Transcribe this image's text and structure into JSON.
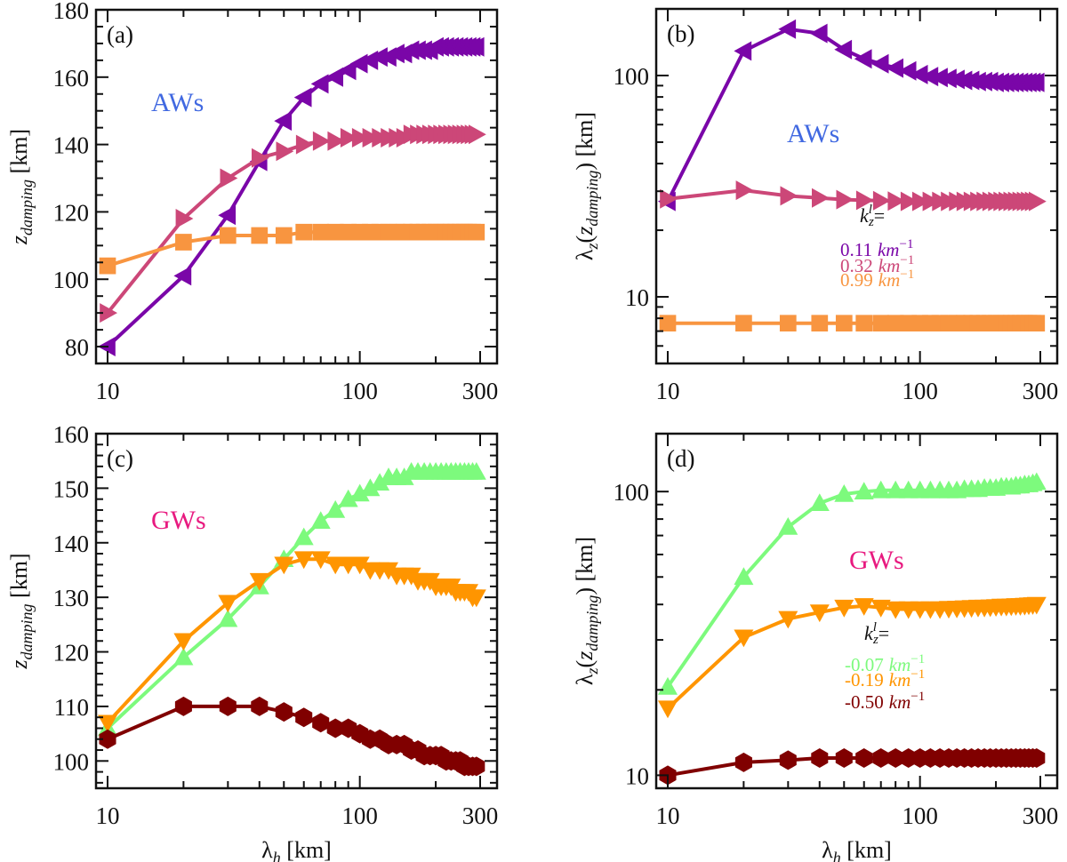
{
  "chart_data": [
    {
      "panel": "(a)",
      "type": "line",
      "title": "",
      "annotation": {
        "text": "AWs",
        "color": "#4169e1"
      },
      "xlabel": "",
      "ylabel": "z_damping [km]",
      "xscale": "log",
      "yscale": "linear",
      "xlim": [
        9,
        350
      ],
      "ylim": [
        75,
        180
      ],
      "xticks": [
        10,
        100,
        300
      ],
      "xtick_labels": [
        "10",
        "100",
        "300"
      ],
      "yticks": [
        80,
        100,
        120,
        140,
        160,
        180
      ],
      "ytick_labels": [
        "80",
        "100",
        "120",
        "140",
        "160",
        "180"
      ],
      "yminor_step": 5,
      "x": [
        10,
        20,
        30,
        40,
        50,
        60,
        70,
        80,
        90,
        100,
        110,
        120,
        130,
        140,
        150,
        160,
        170,
        180,
        190,
        200,
        210,
        220,
        230,
        240,
        250,
        260,
        270,
        280,
        290
      ],
      "series": [
        {
          "name": "0.11 km^-1",
          "color": "#7a06a8",
          "marker": "triangle-left",
          "values": [
            80,
            101,
            119,
            135,
            147,
            154,
            158,
            160,
            162,
            164,
            165,
            166,
            166,
            167,
            167,
            168,
            168,
            168,
            168,
            169,
            169,
            169,
            169,
            169,
            169,
            169,
            169,
            169,
            169
          ]
        },
        {
          "name": "0.32 km^-1",
          "color": "#cc4778",
          "marker": "triangle-right",
          "values": [
            90,
            118,
            130,
            136,
            138,
            140,
            141,
            141,
            142,
            142,
            142,
            142,
            142,
            142,
            142,
            143,
            143,
            143,
            143,
            143,
            143,
            143,
            143,
            143,
            143,
            143,
            143,
            143,
            143
          ]
        },
        {
          "name": "0.99 km^-1",
          "color": "#f89540",
          "marker": "square",
          "values": [
            104,
            111,
            113,
            113,
            113,
            114,
            114,
            114,
            114,
            114,
            114,
            114,
            114,
            114,
            114,
            114,
            114,
            114,
            114,
            114,
            114,
            114,
            114,
            114,
            114,
            114,
            114,
            114,
            114
          ]
        }
      ]
    },
    {
      "panel": "(b)",
      "type": "line",
      "title": "",
      "annotation": {
        "text": "AWs",
        "color": "#4169e1"
      },
      "legend": {
        "title": "k_z^l =",
        "placement": "center-right",
        "entries": [
          {
            "text": "0.11",
            "unit": "km",
            "exp": "−1",
            "color": "#7a06a8"
          },
          {
            "text": "0.32",
            "unit": "km",
            "exp": "−1",
            "color": "#cc4778"
          },
          {
            "text": "0.99",
            "unit": "km",
            "exp": "−1",
            "color": "#f89540"
          }
        ]
      },
      "xlabel": "",
      "ylabel": "λz(z_damping) [km]",
      "xscale": "log",
      "yscale": "log",
      "xlim": [
        9,
        350
      ],
      "ylim": [
        5,
        200
      ],
      "xticks": [
        10,
        100,
        300
      ],
      "xtick_labels": [
        "10",
        "100",
        "300"
      ],
      "yticks": [
        10,
        100
      ],
      "ytick_labels": [
        "10",
        "100"
      ],
      "x": [
        10,
        20,
        30,
        40,
        50,
        60,
        70,
        80,
        90,
        100,
        110,
        120,
        130,
        140,
        150,
        160,
        170,
        180,
        190,
        200,
        210,
        220,
        230,
        240,
        250,
        260,
        270,
        280,
        290
      ],
      "series": [
        {
          "name": "0.11 km^-1",
          "color": "#7a06a8",
          "marker": "triangle-left",
          "values": [
            27,
            129,
            162,
            155,
            131,
            119,
            113,
            108,
            105,
            101,
            99,
            98,
            97,
            96,
            95,
            95,
            94,
            94,
            94,
            93,
            93,
            93,
            93,
            93,
            93,
            93,
            93,
            93,
            93
          ]
        },
        {
          "name": "0.32 km^-1",
          "color": "#cc4778",
          "marker": "triangle-right",
          "values": [
            27.7,
            30.3,
            28.6,
            28,
            27.5,
            27.3,
            27.2,
            27.1,
            27,
            27,
            27,
            27,
            27,
            27,
            27,
            27,
            27,
            27,
            27,
            27,
            27,
            27,
            27,
            27,
            27,
            27,
            27,
            27,
            27
          ]
        },
        {
          "name": "0.99 km^-1",
          "color": "#f89540",
          "marker": "square",
          "values": [
            7.6,
            7.6,
            7.6,
            7.6,
            7.6,
            7.6,
            7.6,
            7.6,
            7.6,
            7.6,
            7.6,
            7.6,
            7.6,
            7.6,
            7.6,
            7.6,
            7.6,
            7.6,
            7.6,
            7.6,
            7.6,
            7.6,
            7.6,
            7.6,
            7.6,
            7.6,
            7.6,
            7.6,
            7.6
          ]
        }
      ]
    },
    {
      "panel": "(c)",
      "type": "line",
      "title": "",
      "annotation": {
        "text": "GWs",
        "color": "#e8197f"
      },
      "xlabel": "λh [km]",
      "ylabel": "z_damping [km]",
      "xscale": "log",
      "yscale": "linear",
      "xlim": [
        9,
        350
      ],
      "ylim": [
        95,
        160
      ],
      "xticks": [
        10,
        100,
        300
      ],
      "xtick_labels": [
        "10",
        "100",
        "300"
      ],
      "yticks": [
        100,
        110,
        120,
        130,
        140,
        150,
        160
      ],
      "ytick_labels": [
        "100",
        "110",
        "120",
        "130",
        "140",
        "150",
        "160"
      ],
      "yminor_step": 2,
      "x": [
        10,
        20,
        30,
        40,
        50,
        60,
        70,
        80,
        90,
        100,
        110,
        120,
        130,
        140,
        150,
        160,
        170,
        180,
        190,
        200,
        210,
        220,
        230,
        240,
        250,
        260,
        270,
        280,
        290
      ],
      "series": [
        {
          "name": "-0.07 km^-1",
          "color": "#7dfa7d",
          "marker": "triangle-up",
          "values": [
            106,
            119,
            126,
            132,
            137,
            141,
            144,
            146,
            148,
            149,
            150,
            151,
            152,
            152,
            152,
            153,
            153,
            153,
            153,
            153,
            153,
            153,
            153,
            153,
            153,
            153,
            153,
            153,
            153
          ]
        },
        {
          "name": "-0.19 km^-1",
          "color": "#ff9500",
          "marker": "triangle-down",
          "values": [
            107,
            122,
            129,
            133,
            136,
            137,
            137,
            136,
            136,
            136,
            135,
            135,
            135,
            134,
            134,
            134,
            133,
            133,
            133,
            132,
            132,
            132,
            132,
            131,
            131,
            131,
            131,
            130,
            130
          ]
        },
        {
          "name": "-0.50 km^-1",
          "color": "#800000",
          "marker": "hexagon",
          "values": [
            104,
            110,
            110,
            110,
            109,
            108,
            107,
            106,
            106,
            105,
            104,
            104,
            103,
            103,
            103,
            102,
            102,
            101,
            101,
            101,
            101,
            100,
            100,
            100,
            100,
            99,
            99,
            99,
            99
          ]
        }
      ]
    },
    {
      "panel": "(d)",
      "type": "line",
      "title": "",
      "annotation": {
        "text": "GWs",
        "color": "#e8197f"
      },
      "legend": {
        "title": "k_z^l =",
        "placement": "center-right",
        "entries": [
          {
            "text": "-0.07",
            "unit": "km",
            "exp": "−1",
            "color": "#7dfa7d"
          },
          {
            "text": "-0.19",
            "unit": "km",
            "exp": "−1",
            "color": "#ff9500"
          },
          {
            "text": "-0.50",
            "unit": "km",
            "exp": "−1",
            "color": "#800000"
          }
        ]
      },
      "xlabel": "λh [km]",
      "ylabel": "λz(z_damping) [km]",
      "xscale": "log",
      "yscale": "log",
      "xlim": [
        9,
        350
      ],
      "ylim": [
        9,
        160
      ],
      "xticks": [
        10,
        100,
        300
      ],
      "xtick_labels": [
        "10",
        "100",
        "300"
      ],
      "yticks": [
        10,
        100
      ],
      "ytick_labels": [
        "10",
        "100"
      ],
      "x": [
        10,
        20,
        30,
        40,
        50,
        60,
        70,
        80,
        90,
        100,
        110,
        120,
        130,
        140,
        150,
        160,
        170,
        180,
        190,
        200,
        210,
        220,
        230,
        240,
        250,
        260,
        270,
        280,
        290
      ],
      "series": [
        {
          "name": "-0.07 km^-1",
          "color": "#7dfa7d",
          "marker": "triangle-up",
          "values": [
            20.5,
            50,
            75,
            91,
            98,
            100,
            101,
            101,
            101,
            101,
            101,
            101,
            101,
            101,
            102,
            102,
            102,
            103,
            103,
            103,
            104,
            104,
            104,
            105,
            105,
            106,
            106,
            107,
            108
          ]
        },
        {
          "name": "-0.19 km^-1",
          "color": "#ff9500",
          "marker": "triangle-down",
          "values": [
            17.2,
            30.6,
            35.6,
            37.5,
            39,
            39.5,
            39,
            38.5,
            38.5,
            38.5,
            38.5,
            38.5,
            38.6,
            38.7,
            38.8,
            38.9,
            39,
            39,
            39.1,
            39.2,
            39.3,
            39.3,
            39.4,
            39.5,
            39.5,
            39.6,
            39.7,
            39.8,
            39.9
          ]
        },
        {
          "name": "-0.50 km^-1",
          "color": "#800000",
          "marker": "hexagon",
          "values": [
            10,
            11.1,
            11.3,
            11.5,
            11.5,
            11.5,
            11.5,
            11.5,
            11.5,
            11.5,
            11.5,
            11.5,
            11.5,
            11.5,
            11.5,
            11.5,
            11.5,
            11.5,
            11.5,
            11.5,
            11.5,
            11.5,
            11.5,
            11.5,
            11.5,
            11.5,
            11.5,
            11.5,
            11.5
          ]
        }
      ]
    }
  ]
}
